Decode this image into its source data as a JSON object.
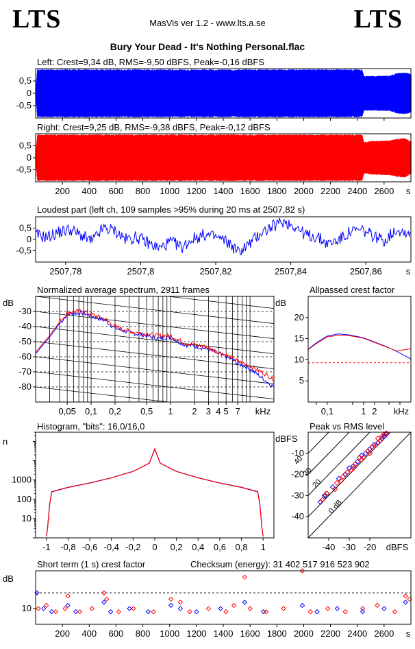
{
  "header": {
    "logo_left": "LTS",
    "logo_right": "LTS",
    "app_title": "MasVis ver 1.2 - www.lts.a.se",
    "file_title": "Bury Your Dead - It's Nothing Personal.flac"
  },
  "colors": {
    "left_channel": "#0000ff",
    "right_channel": "#ff0000",
    "reference_line": "#ff0000"
  },
  "chart_data": [
    {
      "id": "left-waveform",
      "type": "area",
      "title": "Left: Crest=9,34 dB, RMS=-9,50 dBFS, Peak=-0,16 dBFS",
      "ylim": [
        -1,
        1
      ],
      "y_ticks": [
        0.5,
        0,
        -0.5
      ],
      "y_tick_labels": [
        "0,5",
        "0",
        "-0,5"
      ],
      "xlim": [
        0,
        2800
      ],
      "x_unit": "s",
      "envelope_level": 0.97,
      "envelope_ending": [
        [
          2435,
          0.97
        ],
        [
          2450,
          0.7
        ],
        [
          2500,
          0.7
        ],
        [
          2640,
          0.72
        ],
        [
          2700,
          0.82
        ],
        [
          2760,
          0.85
        ],
        [
          2790,
          0.8
        ]
      ],
      "dropouts_s": [
        240,
        510,
        1010,
        1080,
        1560,
        1990,
        2440
      ],
      "series": [
        {
          "name": "Left",
          "color": "#0000ff"
        }
      ]
    },
    {
      "id": "right-waveform",
      "type": "area",
      "title": "Right: Crest=9,25 dB, RMS=-9,38 dBFS, Peak=-0,12 dBFS",
      "ylim": [
        -1,
        1
      ],
      "y_ticks": [
        0.5,
        0,
        -0.5
      ],
      "y_tick_labels": [
        "0,5",
        "0",
        "-0,5"
      ],
      "xlim": [
        0,
        2800
      ],
      "x_ticks": [
        200,
        400,
        600,
        800,
        1000,
        1200,
        1400,
        1600,
        1800,
        2000,
        2200,
        2400,
        2600
      ],
      "x_tick_labels": [
        "200",
        "400",
        "600",
        "800",
        "1000",
        "1200",
        "1400",
        "1600",
        "1800",
        "2000",
        "2200",
        "2400",
        "2600"
      ],
      "x_unit": "s",
      "envelope_level": 0.97,
      "envelope_ending": [
        [
          2435,
          0.97
        ],
        [
          2450,
          0.65
        ],
        [
          2500,
          0.7
        ],
        [
          2640,
          0.72
        ],
        [
          2700,
          0.8
        ],
        [
          2760,
          0.82
        ],
        [
          2790,
          0.7
        ]
      ],
      "dropouts_s": [
        240,
        510,
        1010,
        1080,
        1560,
        1990,
        2440
      ],
      "series": [
        {
          "name": "Right",
          "color": "#ff0000"
        }
      ]
    },
    {
      "id": "loudest-part",
      "type": "line",
      "title": "Loudest part (left  ch, 109 samples >95% during 20 ms at 2507,82 s)",
      "ylim": [
        -1,
        1
      ],
      "y_ticks": [
        0.5,
        0,
        -0.5
      ],
      "y_tick_labels": [
        "0,5",
        "0",
        "-0,5"
      ],
      "xlim": [
        2507.772,
        2507.872
      ],
      "x_ticks": [
        2507.78,
        2507.8,
        2507.82,
        2507.84,
        2507.86
      ],
      "x_tick_labels": [
        "2507,78",
        "2507,8",
        "2507,82",
        "2507,84",
        "2507,86"
      ],
      "x_unit": "s",
      "x": [
        2507.772,
        2507.775,
        2507.778,
        2507.781,
        2507.784,
        2507.787,
        2507.79,
        2507.793,
        2507.796,
        2507.799,
        2507.802,
        2507.805,
        2507.808,
        2507.811,
        2507.814,
        2507.817,
        2507.82,
        2507.823,
        2507.826,
        2507.829,
        2507.832,
        2507.835,
        2507.838,
        2507.841,
        2507.844,
        2507.847,
        2507.85,
        2507.853,
        2507.856,
        2507.859,
        2507.862,
        2507.865,
        2507.868,
        2507.871
      ],
      "y": [
        0.2,
        0.1,
        0.3,
        0.45,
        0.2,
        -0.1,
        0.5,
        0.4,
        0.0,
        0.1,
        -0.15,
        -0.4,
        -0.1,
        -0.35,
        0.05,
        0.2,
        0.1,
        -0.1,
        -0.55,
        -0.2,
        0.3,
        0.55,
        0.8,
        0.6,
        0.2,
        0.1,
        -0.2,
        0.0,
        0.35,
        0.4,
        0.15,
        -0.05,
        0.45,
        0.3
      ],
      "series": [
        {
          "name": "Left",
          "color": "#0000ff"
        }
      ]
    },
    {
      "id": "average-spectrum",
      "type": "line",
      "title": "Normalized average spectrum, 2911 frames",
      "ylabel": "dB",
      "xlabel": "kHz",
      "x_scale": "log",
      "xlim": [
        0.02,
        20
      ],
      "ylim": [
        -90,
        -20
      ],
      "y_ticks": [
        -30,
        -40,
        -50,
        -60,
        -70,
        -80
      ],
      "y_tick_labels": [
        "-30",
        "-40",
        "-50",
        "-60",
        "-70",
        "-80"
      ],
      "x_ticks": [
        0.05,
        0.1,
        0.2,
        0.5,
        1,
        2,
        3,
        4,
        5,
        7
      ],
      "x_tick_labels": [
        "0,05",
        "0,1",
        "0,2",
        "0,5",
        "1",
        "2",
        "3",
        "4",
        "5",
        "7"
      ],
      "x_unit": "kHz",
      "x": [
        0.02,
        0.03,
        0.04,
        0.05,
        0.06,
        0.08,
        0.1,
        0.15,
        0.2,
        0.3,
        0.5,
        0.7,
        1,
        1.5,
        2,
        3,
        4,
        5,
        7,
        10,
        15,
        20
      ],
      "series": [
        {
          "name": "Left",
          "color": "#0000ff",
          "values": [
            -58,
            -47,
            -38,
            -32,
            -31,
            -31,
            -33,
            -36,
            -41,
            -44,
            -46,
            -48,
            -47,
            -52,
            -53,
            -55,
            -58,
            -60,
            -64,
            -68,
            -75,
            -80
          ]
        },
        {
          "name": "Right",
          "color": "#ff0000",
          "values": [
            -57,
            -46,
            -37,
            -31,
            -30,
            -30,
            -32,
            -35,
            -40,
            -43,
            -45,
            -46,
            -46,
            -51,
            -52,
            -54,
            -57,
            -59,
            -63,
            -66,
            -71,
            -75
          ]
        }
      ]
    },
    {
      "id": "allpassed-crest-factor",
      "type": "line",
      "title": "Allpassed crest factor",
      "ylabel": "dB",
      "xlabel": "kHz",
      "x_scale": "log",
      "xlim": [
        0.03,
        20
      ],
      "ylim": [
        0,
        25
      ],
      "y_ticks": [
        5,
        10,
        15,
        20
      ],
      "y_tick_labels": [
        "5",
        "10",
        "15",
        "20"
      ],
      "x_ticks": [
        0.1,
        1,
        2
      ],
      "x_tick_labels": [
        "0,1",
        "1",
        "2"
      ],
      "x_unit": "kHz",
      "reference_db": 9.3,
      "x": [
        0.03,
        0.05,
        0.1,
        0.2,
        0.4,
        1,
        2,
        4,
        8,
        20
      ],
      "series": [
        {
          "name": "Left",
          "color": "#0000ff",
          "values": [
            12.5,
            14,
            15.6,
            16.1,
            15.9,
            15.2,
            14.2,
            13.2,
            12,
            10.2
          ]
        },
        {
          "name": "Right",
          "color": "#ff0000",
          "values": [
            12.4,
            13.8,
            15.4,
            15.8,
            15.7,
            15.1,
            14.1,
            13.1,
            12.1,
            12.6
          ]
        }
      ]
    },
    {
      "id": "histogram",
      "type": "line",
      "title": "Histogram, \"bits\": 16,0/16,0",
      "ylabel": "n",
      "y_scale": "log",
      "xlim": [
        -1.1,
        1.1
      ],
      "ylim": [
        1,
        300000
      ],
      "y_ticks": [
        10,
        100,
        1000
      ],
      "y_tick_labels": [
        "10",
        "100",
        "1000"
      ],
      "x_ticks": [
        -1,
        -0.8,
        -0.6,
        -0.4,
        -0.2,
        0,
        0.2,
        0.4,
        0.6,
        0.8,
        1
      ],
      "x_tick_labels": [
        "-1",
        "-0,8",
        "-0,6",
        "-0,4",
        "-0,2",
        "0",
        "0,2",
        "0,4",
        "0,6",
        "0,8",
        "1"
      ],
      "x": [
        -1,
        -0.99,
        -0.97,
        -0.95,
        -0.9,
        -0.8,
        -0.6,
        -0.4,
        -0.2,
        -0.05,
        0,
        0.05,
        0.2,
        0.4,
        0.6,
        0.8,
        0.9,
        0.95,
        0.97,
        0.99,
        1
      ],
      "series": [
        {
          "name": "Left",
          "color": "#0000ff",
          "values": [
            1.2,
            3,
            60,
            250,
            300,
            420,
            700,
            1300,
            2800,
            7500,
            40000,
            7500,
            2800,
            1300,
            700,
            420,
            300,
            250,
            60,
            3,
            1.2
          ]
        },
        {
          "name": "Right",
          "color": "#ff0000",
          "values": [
            1.2,
            3,
            55,
            240,
            290,
            410,
            690,
            1280,
            2780,
            7400,
            42000,
            7400,
            2780,
            1280,
            690,
            410,
            290,
            240,
            55,
            3,
            1.2
          ]
        }
      ]
    },
    {
      "id": "peak-vs-rms",
      "type": "scatter",
      "title": "Peak vs RMS level",
      "ylabel": "dBFS",
      "xlabel": "dBFS",
      "xlim": [
        -50,
        0
      ],
      "ylim": [
        -50,
        0
      ],
      "x_ticks": [
        -40,
        -30,
        -20
      ],
      "x_tick_labels": [
        "-40",
        "-30",
        "-20"
      ],
      "y_ticks": [
        -10,
        -20,
        -30,
        -40
      ],
      "y_tick_labels": [
        "-10",
        "-20",
        "-30",
        "-40"
      ],
      "crest_lines_db": [
        0,
        10,
        20,
        30,
        40
      ],
      "crest_line_labels": [
        "0 dB",
        "10",
        "20",
        "30",
        "40"
      ],
      "series": [
        {
          "name": "Left",
          "color": "#0000ff",
          "points": [
            [
              -44,
              -33
            ],
            [
              -42,
              -30
            ],
            [
              -38,
              -26
            ],
            [
              -35,
              -22
            ],
            [
              -32,
              -20
            ],
            [
              -30,
              -17
            ],
            [
              -28,
              -16
            ],
            [
              -26,
              -14
            ],
            [
              -24,
              -11
            ],
            [
              -22,
              -10
            ],
            [
              -20,
              -8
            ],
            [
              -18,
              -6
            ],
            [
              -16,
              -5
            ],
            [
              -14,
              -3
            ],
            [
              -13,
              -2
            ],
            [
              -12,
              -1
            ]
          ]
        },
        {
          "name": "Right",
          "color": "#ff0000",
          "points": [
            [
              -43,
              -32
            ],
            [
              -41,
              -29
            ],
            [
              -37,
              -27
            ],
            [
              -36,
              -24
            ],
            [
              -33,
              -21
            ],
            [
              -31,
              -19
            ],
            [
              -29,
              -18
            ],
            [
              -27,
              -15
            ],
            [
              -25,
              -12
            ],
            [
              -23,
              -12
            ],
            [
              -21,
              -9
            ],
            [
              -19,
              -7
            ],
            [
              -17,
              -6
            ],
            [
              -15,
              -4
            ],
            [
              -14,
              -2
            ],
            [
              -13,
              -1
            ],
            [
              -12,
              -0.5
            ],
            [
              -16,
              -3
            ],
            [
              -20,
              -10
            ],
            [
              -24,
              -13
            ],
            [
              -28,
              -17
            ],
            [
              -34,
              -23
            ]
          ]
        }
      ]
    },
    {
      "id": "short-term-crest",
      "type": "scatter",
      "title": "Short term (1 s) crest factor",
      "ylabel": "dB",
      "xlim": [
        0,
        2800
      ],
      "ylim": [
        5,
        22
      ],
      "y_ticks": [
        10
      ],
      "y_tick_labels": [
        "10"
      ],
      "reference_db": 15,
      "x_ticks": [
        200,
        400,
        600,
        800,
        1000,
        1200,
        1400,
        1600,
        1800,
        2000,
        2200,
        2400,
        2600
      ],
      "x_tick_labels": [
        "200",
        "400",
        "600",
        "800",
        "1000",
        "1200",
        "1400",
        "1600",
        "1800",
        "2000",
        "2200",
        "2400",
        "2600"
      ],
      "x_unit": "s",
      "series": [
        {
          "name": "Left",
          "color": "#0000ff",
          "points": [
            [
              10,
              15
            ],
            [
              60,
              10
            ],
            [
              120,
              9
            ],
            [
              240,
              11
            ],
            [
              300,
              9
            ],
            [
              510,
              12
            ],
            [
              560,
              9
            ],
            [
              700,
              10
            ],
            [
              840,
              9
            ],
            [
              1010,
              11
            ],
            [
              1080,
              10
            ],
            [
              1200,
              9
            ],
            [
              1380,
              10
            ],
            [
              1560,
              12
            ],
            [
              1700,
              9
            ],
            [
              1990,
              11
            ],
            [
              2100,
              9
            ],
            [
              2250,
              10
            ],
            [
              2440,
              9
            ],
            [
              2600,
              10
            ],
            [
              2760,
              12
            ]
          ]
        },
        {
          "name": "Right",
          "color": "#ff0000",
          "points": [
            [
              20,
              10
            ],
            [
              80,
              11
            ],
            [
              150,
              9
            ],
            [
              220,
              10
            ],
            [
              240,
              14
            ],
            [
              330,
              9
            ],
            [
              420,
              10
            ],
            [
              510,
              15
            ],
            [
              530,
              13
            ],
            [
              620,
              9
            ],
            [
              730,
              10
            ],
            [
              880,
              9
            ],
            [
              1010,
              13
            ],
            [
              1080,
              12
            ],
            [
              1150,
              9
            ],
            [
              1290,
              10
            ],
            [
              1420,
              9
            ],
            [
              1480,
              11
            ],
            [
              1560,
              20
            ],
            [
              1600,
              10
            ],
            [
              1720,
              9
            ],
            [
              1850,
              10
            ],
            [
              1990,
              22
            ],
            [
              2050,
              9
            ],
            [
              2180,
              10
            ],
            [
              2310,
              9
            ],
            [
              2440,
              10
            ],
            [
              2550,
              11
            ],
            [
              2680,
              9
            ],
            [
              2760,
              14
            ],
            [
              2790,
              13
            ]
          ]
        }
      ]
    }
  ],
  "checksum": {
    "label": "Checksum (energy):",
    "value": "31 402 517 916 523 902"
  }
}
